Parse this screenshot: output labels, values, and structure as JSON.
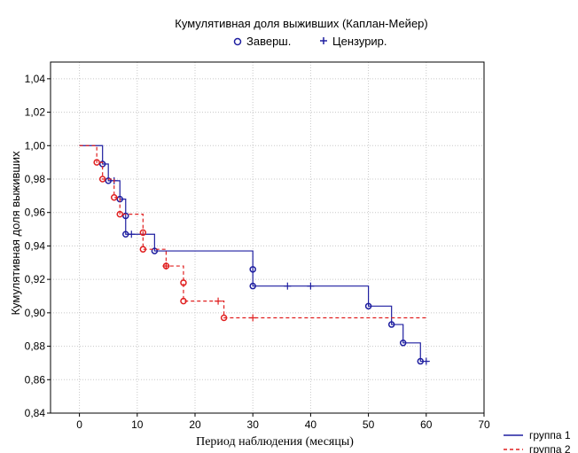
{
  "chart_data": {
    "type": "line",
    "title": "Кумулятивная доля выживших (Каплан-Мейер)",
    "legend_markers": [
      {
        "symbol": "o",
        "label": "Заверш."
      },
      {
        "symbol": "+",
        "label": "Цензурир."
      }
    ],
    "xlabel": "Период наблюдения (месяцы)",
    "ylabel": "Кумулятивная доля выживших",
    "xlim": [
      -5,
      70
    ],
    "ylim": [
      0.84,
      1.05
    ],
    "xticks": [
      0,
      10,
      20,
      30,
      40,
      50,
      60,
      70
    ],
    "yticks": [
      0.84,
      0.86,
      0.88,
      0.9,
      0.92,
      0.94,
      0.96,
      0.98,
      1.0,
      1.02,
      1.04
    ],
    "ytick_labels": [
      "0,84",
      "0,86",
      "0,88",
      "0,90",
      "0,92",
      "0,94",
      "0,96",
      "0,98",
      "1,00",
      "1,02",
      "1,04"
    ],
    "grid": true,
    "legend_position": "bottom-right",
    "series": [
      {
        "name": "группа 1",
        "color": "#1f1fa0",
        "style": "solid",
        "steps": [
          [
            0,
            1.0
          ],
          [
            4,
            0.989
          ],
          [
            5,
            0.979
          ],
          [
            7,
            0.968
          ],
          [
            8,
            0.958
          ],
          [
            8,
            0.947
          ],
          [
            13,
            0.937
          ],
          [
            30,
            0.926
          ],
          [
            30,
            0.916
          ],
          [
            50,
            0.904
          ],
          [
            54,
            0.893
          ],
          [
            56,
            0.882
          ],
          [
            59,
            0.871
          ],
          [
            60.5,
            0.871
          ]
        ],
        "events": [
          [
            4,
            0.989
          ],
          [
            5,
            0.979
          ],
          [
            7,
            0.968
          ],
          [
            8,
            0.958
          ],
          [
            8,
            0.947
          ],
          [
            13,
            0.937
          ],
          [
            30,
            0.926
          ],
          [
            30,
            0.916
          ],
          [
            50,
            0.904
          ],
          [
            54,
            0.893
          ],
          [
            56,
            0.882
          ],
          [
            59,
            0.871
          ]
        ],
        "censored": [
          [
            6,
            0.979
          ],
          [
            9,
            0.947
          ],
          [
            36,
            0.916
          ],
          [
            40,
            0.916
          ],
          [
            60,
            0.871
          ]
        ]
      },
      {
        "name": "группа 2",
        "color": "#e02020",
        "style": "dashed",
        "steps": [
          [
            0,
            1.0
          ],
          [
            3,
            0.99
          ],
          [
            4,
            0.98
          ],
          [
            6,
            0.969
          ],
          [
            7,
            0.959
          ],
          [
            11,
            0.948
          ],
          [
            11,
            0.938
          ],
          [
            15,
            0.928
          ],
          [
            18,
            0.918
          ],
          [
            18,
            0.907
          ],
          [
            25,
            0.897
          ],
          [
            60,
            0.897
          ]
        ],
        "events": [
          [
            3,
            0.99
          ],
          [
            4,
            0.98
          ],
          [
            6,
            0.969
          ],
          [
            7,
            0.959
          ],
          [
            11,
            0.948
          ],
          [
            11,
            0.938
          ],
          [
            15,
            0.928
          ],
          [
            18,
            0.918
          ],
          [
            18,
            0.907
          ],
          [
            25,
            0.897
          ]
        ],
        "censored": [
          [
            15,
            0.928
          ],
          [
            24,
            0.907
          ],
          [
            30,
            0.897
          ]
        ]
      }
    ]
  }
}
